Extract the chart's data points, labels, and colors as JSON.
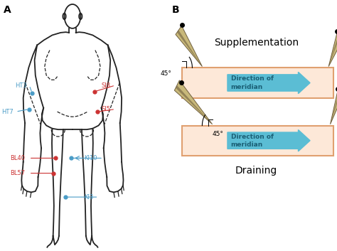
{
  "panel_A_label": "A",
  "panel_B_label": "B",
  "title_supp": "Supplementation",
  "title_drain": "Draining",
  "arrow_text": "Direction of\nmeridian",
  "angle_label": "45°",
  "skin_color": "#fde8d8",
  "skin_border": "#e0a070",
  "arrow_color": "#5bbdd4",
  "needle_tip_color": "#c8b87a",
  "needle_dark_color": "#706040",
  "red": "#cc3333",
  "blue": "#4a9cc7",
  "body_line_color": "#222222"
}
